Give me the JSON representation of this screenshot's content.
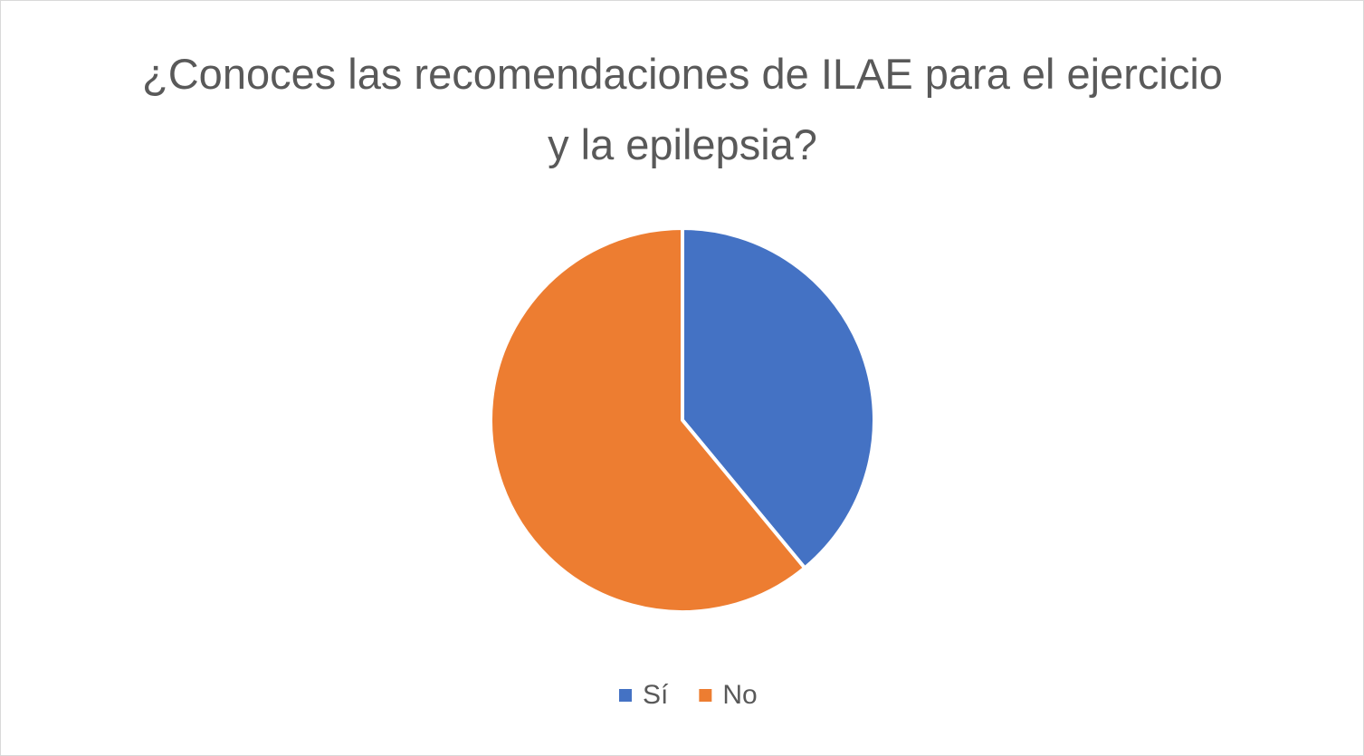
{
  "chart_data": {
    "type": "pie",
    "title": "¿Conoces las recomendaciones de ILAE para el ejercicio y la epilepsia?",
    "categories": [
      "Sí",
      "No"
    ],
    "values": [
      39,
      61
    ],
    "colors": [
      "#4472c4",
      "#ed7d31"
    ],
    "legend": "bottom"
  }
}
